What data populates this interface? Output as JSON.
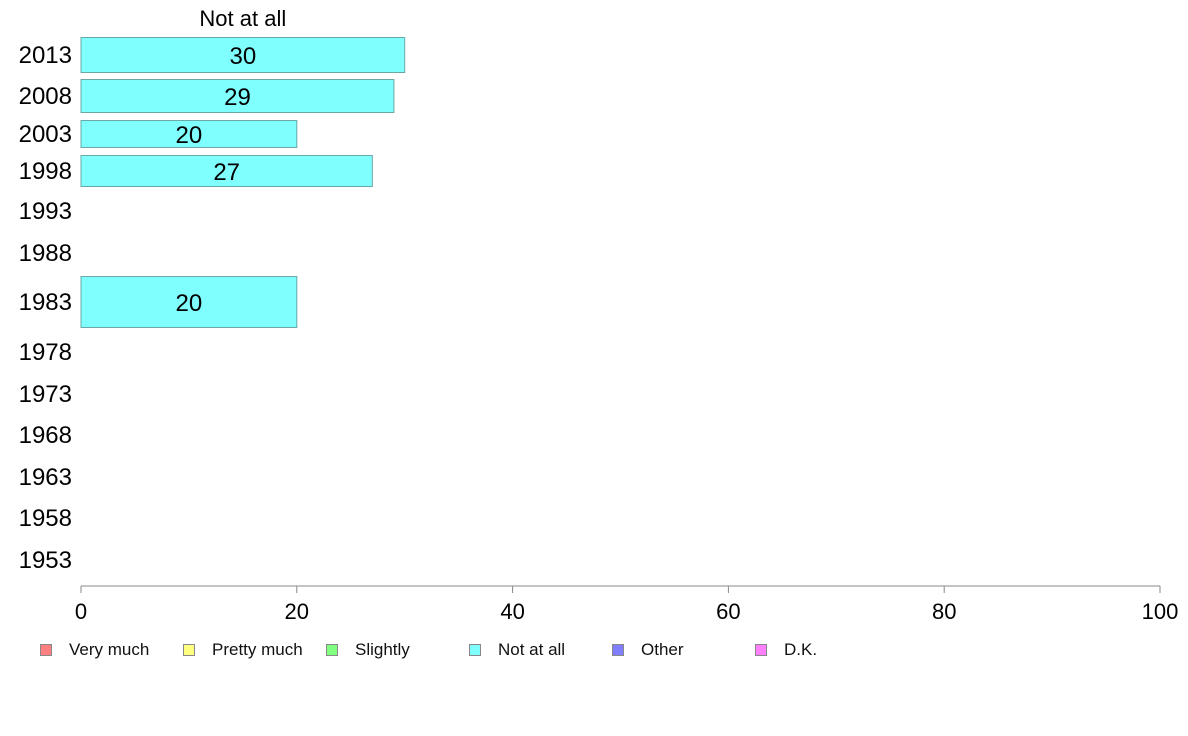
{
  "chart_data": {
    "type": "bar",
    "orientation": "horizontal",
    "title": "Not at all",
    "categories": [
      "2013",
      "2008",
      "2003",
      "1998",
      "1993",
      "1988",
      "1983",
      "1978",
      "1973",
      "1968",
      "1963",
      "1958",
      "1953"
    ],
    "series": [
      {
        "name": "Not at all",
        "color": "#80ffff",
        "values": [
          30,
          29,
          20,
          27,
          null,
          null,
          20,
          null,
          null,
          null,
          null,
          null,
          null
        ]
      }
    ],
    "data_labels": [
      "30",
      "29",
      "20",
      "27",
      "",
      "",
      "20",
      "",
      "",
      "",
      "",
      "",
      ""
    ],
    "xlim": [
      0,
      100
    ],
    "xticks": [
      0,
      20,
      40,
      60,
      80,
      100
    ],
    "xlabel": "",
    "ylabel": "",
    "grid": false,
    "legend_position": "bottom",
    "legend": [
      {
        "label": "Very much",
        "color": "#ff8080"
      },
      {
        "label": "Pretty much",
        "color": "#ffff80"
      },
      {
        "label": "Slightly",
        "color": "#80ff80"
      },
      {
        "label": "Not at all",
        "color": "#80ffff"
      },
      {
        "label": "Other",
        "color": "#8080ff"
      },
      {
        "label": "D.K.",
        "color": "#ff80ff"
      }
    ]
  }
}
